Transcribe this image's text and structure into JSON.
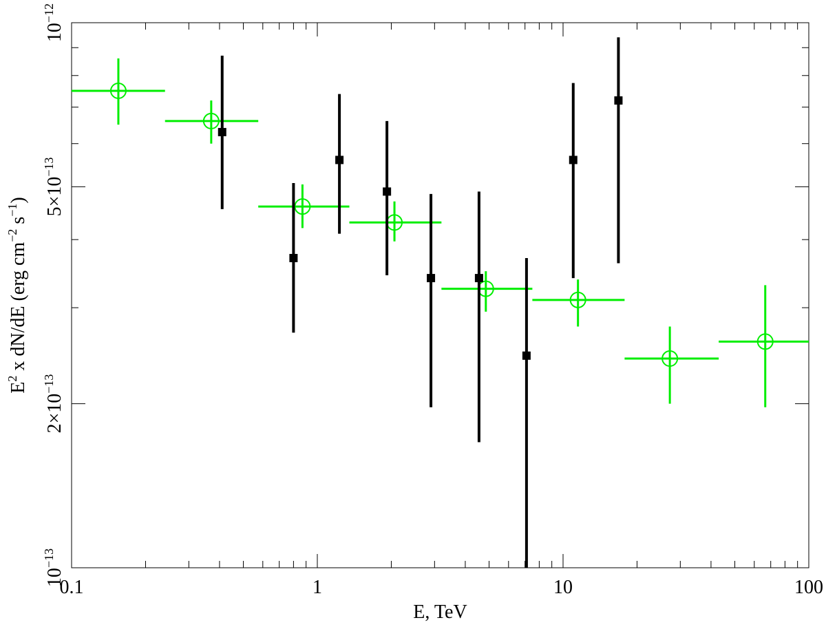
{
  "chart_data": {
    "type": "scatter",
    "xlabel": "E, TeV",
    "ylabel": {
      "base": "E",
      "sup1": "2",
      "mid": " x dN/dE (erg cm",
      "sup2": "−2",
      "mid2": " s",
      "sup3": "−1",
      "end": ")"
    },
    "x_scale": "log",
    "y_scale": "log",
    "xlim": [
      0.1,
      100
    ],
    "ylim": [
      1e-13,
      1e-12
    ],
    "x_tick_labels": [
      {
        "value": 0.1,
        "label": "0.1"
      },
      {
        "value": 1,
        "label": "1"
      },
      {
        "value": 10,
        "label": "10"
      },
      {
        "value": 100,
        "label": "100"
      }
    ],
    "y_tick_labels": [
      {
        "value": 1e-13,
        "mant": "10",
        "exp": "−13"
      },
      {
        "value": 2e-13,
        "mant": "2×10",
        "exp": "−13"
      },
      {
        "value": 5e-13,
        "mant": "5×10",
        "exp": "−13"
      },
      {
        "value": 1e-12,
        "mant": "10",
        "exp": "−12"
      }
    ],
    "grid": false,
    "legend": "none",
    "series": [
      {
        "color": "#00ee00",
        "marker": "open-circle",
        "points": [
          {
            "x": 0.155,
            "xlo": 0.1,
            "xhi": 0.24,
            "y": 7.5e-13,
            "ylo": 6.5e-13,
            "yhi": 8.6e-13
          },
          {
            "x": 0.37,
            "xlo": 0.24,
            "xhi": 0.575,
            "y": 6.6e-13,
            "ylo": 6e-13,
            "yhi": 7.2e-13
          },
          {
            "x": 0.87,
            "xlo": 0.575,
            "xhi": 1.35,
            "y": 4.6e-13,
            "ylo": 4.2e-13,
            "yhi": 5.05e-13
          },
          {
            "x": 2.06,
            "xlo": 1.35,
            "xhi": 3.2,
            "y": 4.3e-13,
            "ylo": 3.97e-13,
            "yhi": 4.7e-13
          },
          {
            "x": 4.85,
            "xlo": 3.2,
            "xhi": 7.5,
            "y": 3.25e-13,
            "ylo": 2.95e-13,
            "yhi": 3.5e-13
          },
          {
            "x": 11.5,
            "xlo": 7.5,
            "xhi": 17.8,
            "y": 3.1e-13,
            "ylo": 2.77e-13,
            "yhi": 3.38e-13
          },
          {
            "x": 27.2,
            "xlo": 17.8,
            "xhi": 43,
            "y": 2.42e-13,
            "ylo": 2e-13,
            "yhi": 2.77e-13
          },
          {
            "x": 66.5,
            "xlo": 43,
            "xhi": 100,
            "y": 2.6e-13,
            "ylo": 1.97e-13,
            "yhi": 3.3e-13
          }
        ]
      },
      {
        "color": "#000000",
        "marker": "filled-square",
        "points": [
          {
            "x": 0.41,
            "y": 6.3e-13,
            "ylo": 4.55e-13,
            "yhi": 8.7e-13
          },
          {
            "x": 0.8,
            "y": 3.7e-13,
            "ylo": 2.7e-13,
            "yhi": 5.08e-13
          },
          {
            "x": 1.23,
            "y": 5.6e-13,
            "ylo": 4.1e-13,
            "yhi": 7.4e-13
          },
          {
            "x": 1.92,
            "y": 4.9e-13,
            "ylo": 3.44e-13,
            "yhi": 6.6e-13
          },
          {
            "x": 2.9,
            "y": 3.4e-13,
            "ylo": 1.97e-13,
            "yhi": 4.85e-13
          },
          {
            "x": 4.55,
            "y": 3.4e-13,
            "ylo": 1.7e-13,
            "yhi": 4.9e-13
          },
          {
            "x": 7.1,
            "y": 2.45e-13,
            "ylo": 1e-13,
            "yhi": 3.7e-13
          },
          {
            "x": 11.0,
            "y": 5.6e-13,
            "ylo": 3.4e-13,
            "yhi": 7.75e-13
          },
          {
            "x": 16.8,
            "y": 7.2e-13,
            "ylo": 3.62e-13,
            "yhi": 9.4e-13
          }
        ]
      }
    ]
  }
}
